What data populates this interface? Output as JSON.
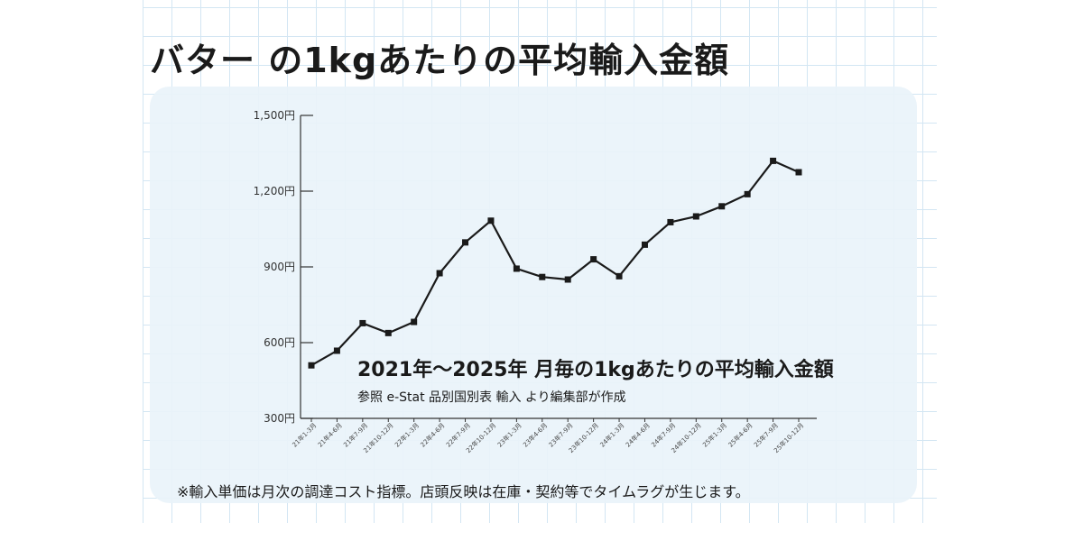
{
  "title": "バター の1kgあたりの平均輸入金額",
  "annotation": {
    "main": "2021年～2025年 月毎の1kgあたりの平均輸入金額",
    "sub": "参照 e-Stat 品別国別表 輸入 より編集部が作成"
  },
  "footnote": "※輸入単価は月次の調達コスト指標。店頭反映は在庫・契約等でタイムラグが生じます。",
  "chart_data": {
    "type": "line",
    "title": "バター の1kgあたりの平均輸入金額",
    "xlabel": "",
    "ylabel": "",
    "ylim": [
      300,
      1500
    ],
    "yticks": [
      300,
      600,
      900,
      1200,
      1500
    ],
    "ytick_labels": [
      "300円",
      "600円",
      "900円",
      "1,200円",
      "1,500円"
    ],
    "grid": false,
    "categories": [
      "21年1-3月",
      "21年4-6月",
      "21年7-9月",
      "21年10-12月",
      "22年1-3月",
      "22年4-6月",
      "22年7-9月",
      "22年10-12月",
      "23年1-3月",
      "23年4-6月",
      "23年7-9月",
      "23年10-12月",
      "24年1-3月",
      "24年4-6月",
      "24年7-9月",
      "24年10-12月",
      "25年1-3月",
      "25年4-6月",
      "25年7-9月",
      "25年10-12月"
    ],
    "series": [
      {
        "name": "",
        "color": "#1a1a1a",
        "values": [
          510,
          568,
          677,
          638,
          682,
          875,
          997,
          1083,
          893,
          860,
          850,
          930,
          863,
          988,
          1077,
          1100,
          1140,
          1188,
          1320,
          1275
        ]
      }
    ]
  }
}
